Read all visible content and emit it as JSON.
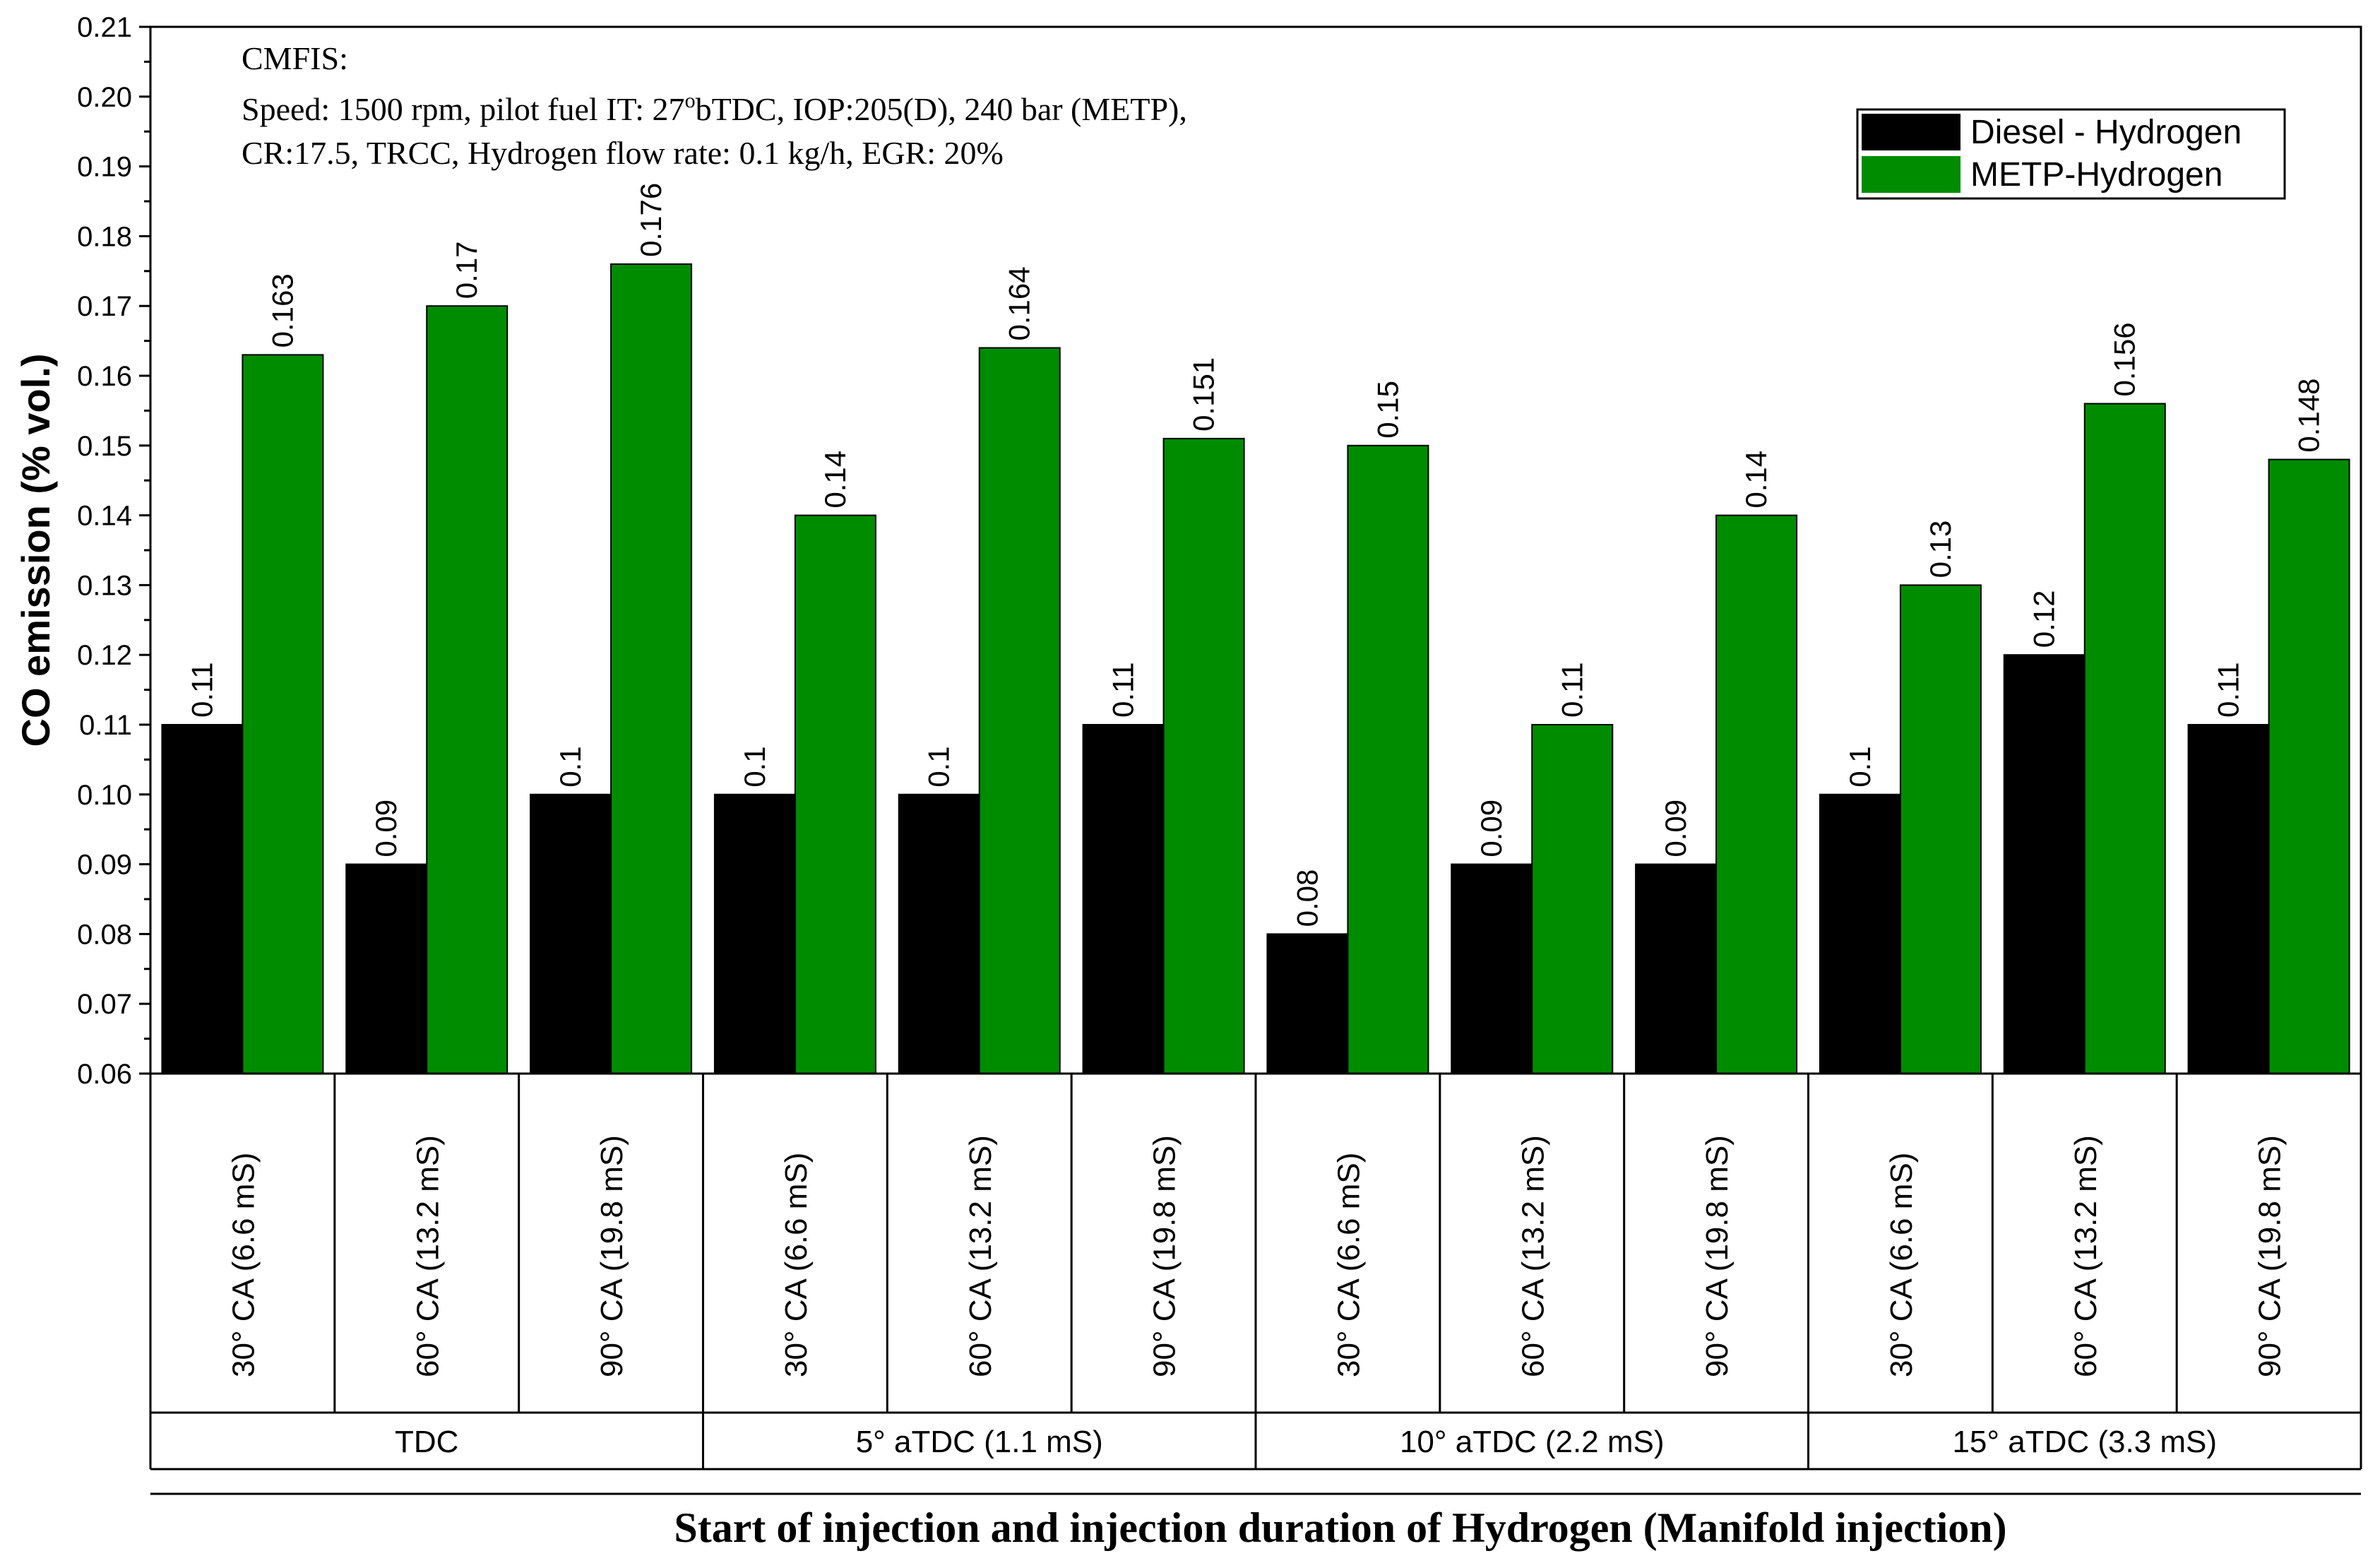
{
  "chart_data": {
    "type": "bar",
    "ylabel": "CO emission (% vol.)",
    "xlabel": "Start of injection and injection duration of Hydrogen (Manifold injection)",
    "ylim": [
      0.06,
      0.21
    ],
    "yticks": [
      "0.06",
      "0.07",
      "0.08",
      "0.09",
      "0.10",
      "0.11",
      "0.12",
      "0.13",
      "0.14",
      "0.15",
      "0.16",
      "0.17",
      "0.18",
      "0.19",
      "0.20",
      "0.21"
    ],
    "categories": [
      "30° CA (6.6 mS)",
      "60° CA (13.2 mS)",
      "90° CA (19.8 mS)",
      "30° CA (6.6 mS)",
      "60° CA (13.2 mS)",
      "90° CA (19.8 mS)",
      "30° CA (6.6 mS)",
      "60° CA (13.2 mS)",
      "90° CA (19.8 mS)",
      "30° CA (6.6 mS)",
      "60° CA (13.2 mS)",
      "90° CA (19.8 mS)"
    ],
    "groups": [
      {
        "label": "TDC",
        "span": 3
      },
      {
        "label": "5° aTDC (1.1 mS)",
        "span": 3
      },
      {
        "label": "10° aTDC (2.2 mS)",
        "span": 3
      },
      {
        "label": "15° aTDC (3.3 mS)",
        "span": 3
      }
    ],
    "series": [
      {
        "name": "Diesel - Hydrogen",
        "color": "#000000",
        "values": [
          0.11,
          0.09,
          0.1,
          0.1,
          0.1,
          0.11,
          0.08,
          0.09,
          0.09,
          0.1,
          0.12,
          0.11
        ],
        "labels": [
          "0.11",
          "0.09",
          "0.1",
          "0.1",
          "0.1",
          "0.11",
          "0.08",
          "0.09",
          "0.09",
          "0.1",
          "0.12",
          "0.11"
        ]
      },
      {
        "name": "METP-Hydrogen",
        "color": "#008c00",
        "values": [
          0.163,
          0.17,
          0.176,
          0.14,
          0.164,
          0.151,
          0.15,
          0.11,
          0.14,
          0.13,
          0.156,
          0.148
        ],
        "labels": [
          "0.163",
          "0.17",
          "0.176",
          "0.14",
          "0.164",
          "0.151",
          "0.15",
          "0.11",
          "0.14",
          "0.13",
          "0.156",
          "0.148"
        ]
      }
    ],
    "annotation": {
      "line1": "CMFIS:",
      "line2a": "Speed: 1500 rpm, pilot fuel IT: 27",
      "line2sup": "o",
      "line2b": "bTDC, IOP:205(D), 240 bar (METP),",
      "line3": "CR:17.5, TRCC, Hydrogen flow rate: 0.1 kg/h, EGR: 20%"
    },
    "legend_position": "top-right",
    "grid": false
  }
}
